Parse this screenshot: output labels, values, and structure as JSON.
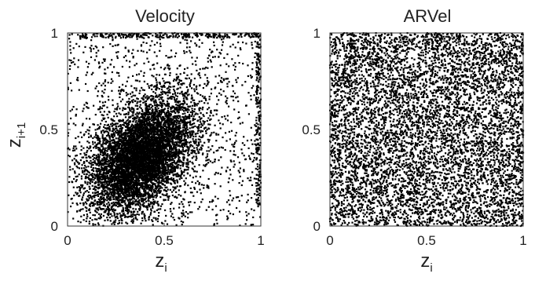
{
  "chart_data": [
    {
      "type": "scatter",
      "title": "Velocity",
      "xlabel": {
        "base": "z",
        "sub": "i"
      },
      "ylabel": {
        "base": "z",
        "sub": "i+1"
      },
      "xlim": [
        0,
        1
      ],
      "ylim": [
        0,
        1
      ],
      "xticks": [
        "0",
        "0.5",
        "1"
      ],
      "yticks": [
        "0",
        "0.5",
        "1"
      ],
      "grid": false,
      "marker_color": "#000000",
      "distribution": {
        "kind": "correlated-gaussian",
        "n_points": 6500,
        "mean": [
          0.38,
          0.36
        ],
        "sd": [
          0.14,
          0.15
        ],
        "correlation": 0.45,
        "uniform_background_points": 1200,
        "top_edge_points": 250,
        "right_edge_points": 200
      }
    },
    {
      "type": "scatter",
      "title": "ARVel",
      "xlabel": {
        "base": "z",
        "sub": "i"
      },
      "ylabel": null,
      "xlim": [
        0,
        1
      ],
      "ylim": [
        0,
        1
      ],
      "xticks": [
        "0",
        "0.5",
        "1"
      ],
      "yticks": [
        "0",
        "0.5",
        "1"
      ],
      "grid": false,
      "marker_color": "#000000",
      "distribution": {
        "kind": "uniform",
        "n_points": 7000
      }
    }
  ]
}
